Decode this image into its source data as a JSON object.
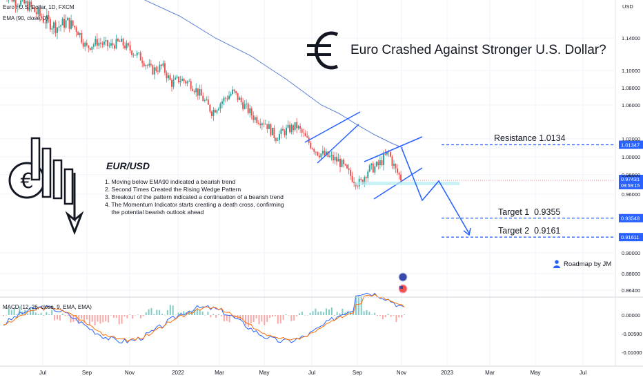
{
  "legend": {
    "symbol": "Euro / U.S. Dollar, 1D, FXCM",
    "ema": "EMA (90, close, 0)",
    "macd": "MACD (12, 26, close, 9, EMA, EMA)"
  },
  "headline": "Euro Crashed Against Stronger U.S. Dollar?",
  "analysis": {
    "title": "EUR/USD",
    "points": [
      "1. Moving below EMA90 indicated a bearish trend",
      "2. Second Times Created the Rising Wedge Pattern",
      "3. Breakout of the pattern indicated a continuation of a bearish trend",
      "4. The Momentum Indicator starts creating a death cross, confirming",
      "    the potential bearish outlook ahead"
    ]
  },
  "levels": {
    "resistance": {
      "label": "Resistance 1.0134",
      "value": 1.01347,
      "tag": "1.01347"
    },
    "target1": {
      "label": "Target 1  0.9355",
      "value": 0.93548,
      "tag": "0.93548"
    },
    "target2": {
      "label": "Target 2  0.9161",
      "value": 0.91611,
      "tag": "0.91611"
    }
  },
  "price_tag": {
    "value": "0.97431",
    "countdown": "09:59:15"
  },
  "author": "Roadmap by JM",
  "colors": {
    "up": "#26a69a",
    "down": "#ef5350",
    "ema": "#5b7fd6",
    "level": "#2962ff",
    "macd_line": "#2962ff",
    "signal_line": "#ff6d00",
    "tag_bg": "#2962ff"
  },
  "icons": [
    "euro-sign-icon",
    "euro-bar-chart-down-icon",
    "user-icon",
    "eu-flag-icon",
    "us-flag-icon"
  ],
  "chart_data": {
    "type": "candlestick",
    "price_axis": {
      "label": "USD",
      "ticks": [
        "1.14000",
        "1.10000",
        "1.08000",
        "1.06000",
        "1.02000",
        "1.00000",
        "0.98000",
        "0.96000",
        "0.90000",
        "0.88000",
        "0.86400"
      ],
      "range": [
        0.855,
        1.175
      ]
    },
    "macd_axis": {
      "ticks": [
        "0.00000",
        "-0.00500",
        "-0.01000"
      ]
    },
    "time_axis": {
      "ticks": [
        "Jul",
        "Sep",
        "Nov",
        "2022",
        "Mar",
        "May",
        "Jul",
        "Sep",
        "Nov",
        "2023",
        "Mar",
        "May",
        "Jul"
      ]
    },
    "series_price_path": [
      [
        0,
        1.185
      ],
      [
        0.06,
        1.175
      ],
      [
        0.14,
        1.17
      ],
      [
        0.22,
        1.158
      ],
      [
        0.3,
        1.15
      ],
      [
        0.36,
        1.155
      ],
      [
        0.42,
        1.148
      ],
      [
        0.47,
        1.128
      ],
      [
        0.53,
        1.135
      ],
      [
        0.6,
        1.13
      ],
      [
        0.66,
        1.135
      ],
      [
        0.72,
        1.125
      ],
      [
        0.78,
        1.115
      ],
      [
        0.84,
        1.1
      ],
      [
        0.9,
        1.105
      ],
      [
        0.95,
        1.085
      ],
      [
        1.0,
        1.09
      ],
      [
        1.06,
        1.085
      ],
      [
        1.12,
        1.07
      ],
      [
        1.18,
        1.052
      ],
      [
        1.24,
        1.065
      ],
      [
        1.3,
        1.075
      ],
      [
        1.36,
        1.06
      ],
      [
        1.42,
        1.045
      ],
      [
        1.48,
        1.04
      ],
      [
        1.54,
        1.022
      ],
      [
        1.6,
        1.03
      ],
      [
        1.66,
        1.035
      ],
      [
        1.72,
        1.018
      ],
      [
        1.78,
        1.005
      ],
      [
        1.84,
        1.0
      ],
      [
        1.9,
        0.995
      ],
      [
        1.96,
        0.98
      ],
      [
        2.02,
        0.97
      ],
      [
        2.06,
        0.985
      ],
      [
        2.12,
        0.99
      ],
      [
        2.18,
        1.005
      ],
      [
        2.22,
        0.985
      ],
      [
        2.26,
        0.974
      ]
    ],
    "projection_path": [
      [
        2.26,
        1.005
      ],
      [
        2.36,
        0.962
      ],
      [
        2.46,
        0.98
      ],
      [
        2.66,
        0.918
      ]
    ],
    "ema_path": [
      [
        0.8,
        1.175
      ],
      [
        1.0,
        1.16
      ],
      [
        1.2,
        1.14
      ],
      [
        1.4,
        1.118
      ],
      [
        1.6,
        1.09
      ],
      [
        1.8,
        1.06
      ],
      [
        1.9,
        1.05
      ],
      [
        2.0,
        1.037
      ],
      [
        2.1,
        1.025
      ],
      [
        2.2,
        1.015
      ],
      [
        2.26,
        1.01
      ]
    ]
  }
}
